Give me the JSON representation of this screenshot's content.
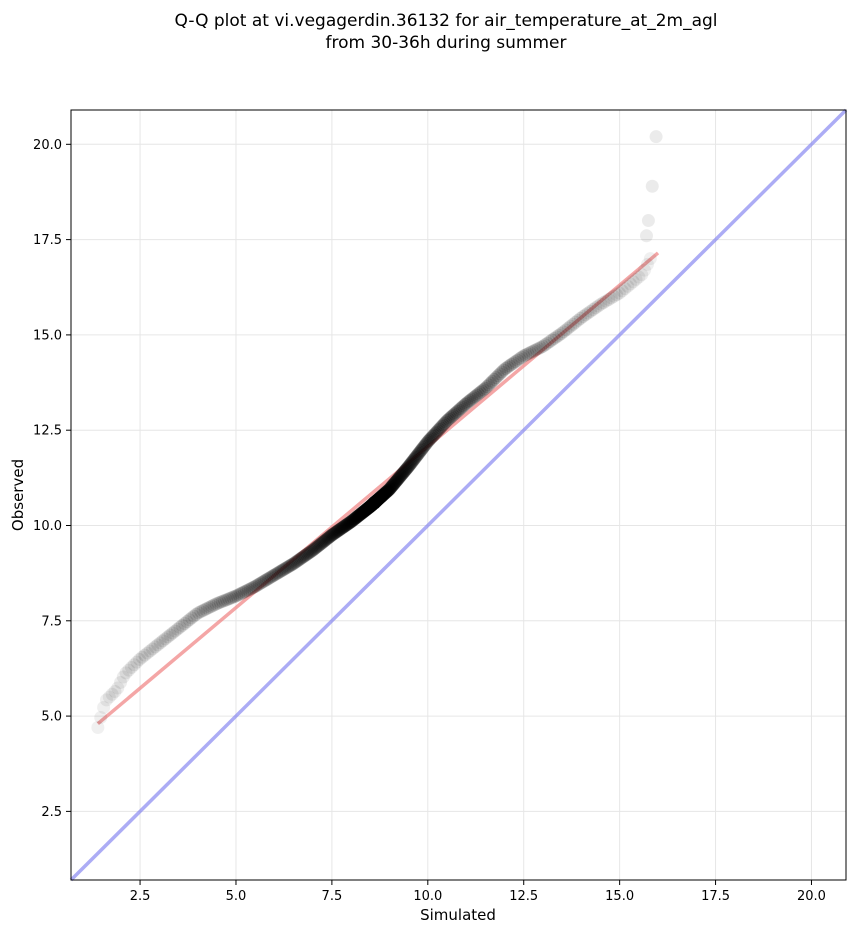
{
  "chart_data": {
    "type": "scatter",
    "title_line1": "Q-Q plot at vi.vegagerdin.36132 for air_temperature_at_2m_agl",
    "title_line2": "from 30-36h during summer",
    "xlabel": "Simulated",
    "ylabel": "Observed",
    "xlim": [
      0.7,
      20.9
    ],
    "ylim": [
      0.7,
      20.9
    ],
    "xticks": [
      2.5,
      5.0,
      7.5,
      10.0,
      12.5,
      15.0,
      17.5,
      20.0
    ],
    "yticks": [
      2.5,
      5.0,
      7.5,
      10.0,
      12.5,
      15.0,
      17.5,
      20.0
    ],
    "xtick_labels": [
      "2.5",
      "5.0",
      "7.5",
      "10.0",
      "12.5",
      "15.0",
      "17.5",
      "20.0"
    ],
    "ytick_labels": [
      "2.5",
      "5.0",
      "7.5",
      "10.0",
      "12.5",
      "15.0",
      "17.5",
      "20.0"
    ],
    "grid": true,
    "colors": {
      "points": "#000000",
      "fit_line": "#f08080",
      "identity_line": "#8080f0"
    },
    "quantile_curve": {
      "x": [
        1.4,
        1.6,
        1.9,
        2.1,
        2.5,
        3.0,
        3.5,
        4.0,
        4.5,
        5.0,
        5.5,
        6.0,
        6.5,
        7.0,
        7.5,
        8.0,
        8.5,
        9.0,
        9.5,
        10.0,
        10.5,
        11.0,
        11.5,
        12.0,
        12.5,
        13.0,
        13.5,
        14.0,
        14.5,
        15.0,
        15.3,
        15.6,
        15.8
      ],
      "y": [
        4.7,
        5.4,
        5.7,
        6.1,
        6.5,
        6.9,
        7.3,
        7.7,
        7.95,
        8.15,
        8.4,
        8.7,
        9.0,
        9.35,
        9.75,
        10.1,
        10.5,
        10.95,
        11.55,
        12.2,
        12.75,
        13.2,
        13.6,
        14.1,
        14.45,
        14.7,
        15.05,
        15.45,
        15.8,
        16.1,
        16.35,
        16.6,
        17.0
      ]
    },
    "outliers": [
      {
        "x": 15.7,
        "y": 17.6
      },
      {
        "x": 15.75,
        "y": 18.0
      },
      {
        "x": 15.85,
        "y": 18.9
      },
      {
        "x": 15.95,
        "y": 20.2
      }
    ],
    "fit_line": {
      "x": [
        1.4,
        16.0
      ],
      "y": [
        4.8,
        17.15
      ]
    },
    "identity_line": {
      "x": [
        0.7,
        20.9
      ],
      "y": [
        0.7,
        20.9
      ]
    }
  }
}
